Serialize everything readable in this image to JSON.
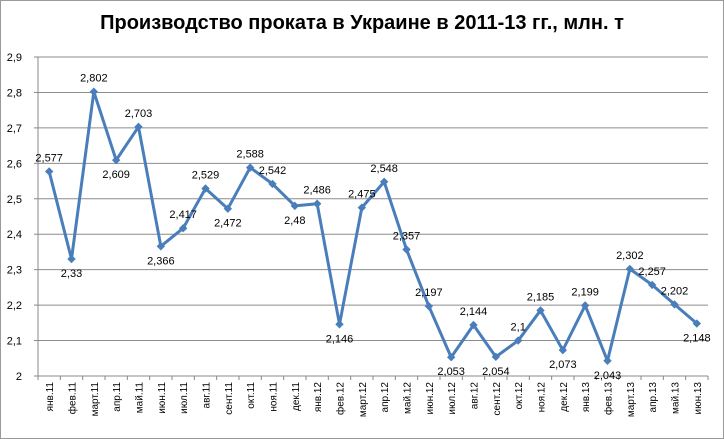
{
  "chart_data": {
    "type": "line",
    "title": "Производство проката в Украине в 2011-13 гг., млн. т",
    "xlabel": "",
    "ylabel": "",
    "ylim": [
      2,
      2.9
    ],
    "yticks": [
      "2",
      "2,1",
      "2,2",
      "2,3",
      "2,4",
      "2,5",
      "2,6",
      "2,7",
      "2,8",
      "2,9"
    ],
    "grid": "horizontal",
    "legend": "none",
    "colors": {
      "line": "#4a7ebb",
      "grid": "#8c8c8c"
    },
    "categories": [
      "янв.11",
      "фев.11",
      "март.11",
      "апр.11",
      "май.11",
      "июн.11",
      "июл.11",
      "авг.11",
      "сент.11",
      "окт.11",
      "ноя.11",
      "дек.11",
      "янв.12",
      "фев.12",
      "март.12",
      "апр.12",
      "май.12",
      "июн.12",
      "июл.12",
      "авг.12",
      "сент.12",
      "окт.12",
      "ноя.12",
      "дек.12",
      "янв.13",
      "фев.13",
      "март.13",
      "апр.13",
      "май.13",
      "июн.13"
    ],
    "values": [
      2.577,
      2.33,
      2.802,
      2.609,
      2.703,
      2.366,
      2.417,
      2.529,
      2.472,
      2.588,
      2.542,
      2.48,
      2.486,
      2.146,
      2.475,
      2.548,
      2.357,
      2.197,
      2.053,
      2.144,
      2.054,
      2.1,
      2.185,
      2.073,
      2.199,
      2.043,
      2.302,
      2.257,
      2.202,
      2.148
    ],
    "data_labels": [
      "2,577",
      "2,33",
      "2,802",
      "2,609",
      "2,703",
      "2,366",
      "2,417",
      "2,529",
      "2,472",
      "2,588",
      "2,542",
      "2,48",
      "2,486",
      "2,146",
      "2,475",
      "2,548",
      "2,357",
      "2,197",
      "2,053",
      "2,144",
      "2,054",
      "2,1",
      "2,185",
      "2,073",
      "2,199",
      "2,043",
      "2,302",
      "2,257",
      "2,202",
      "2,148"
    ]
  }
}
